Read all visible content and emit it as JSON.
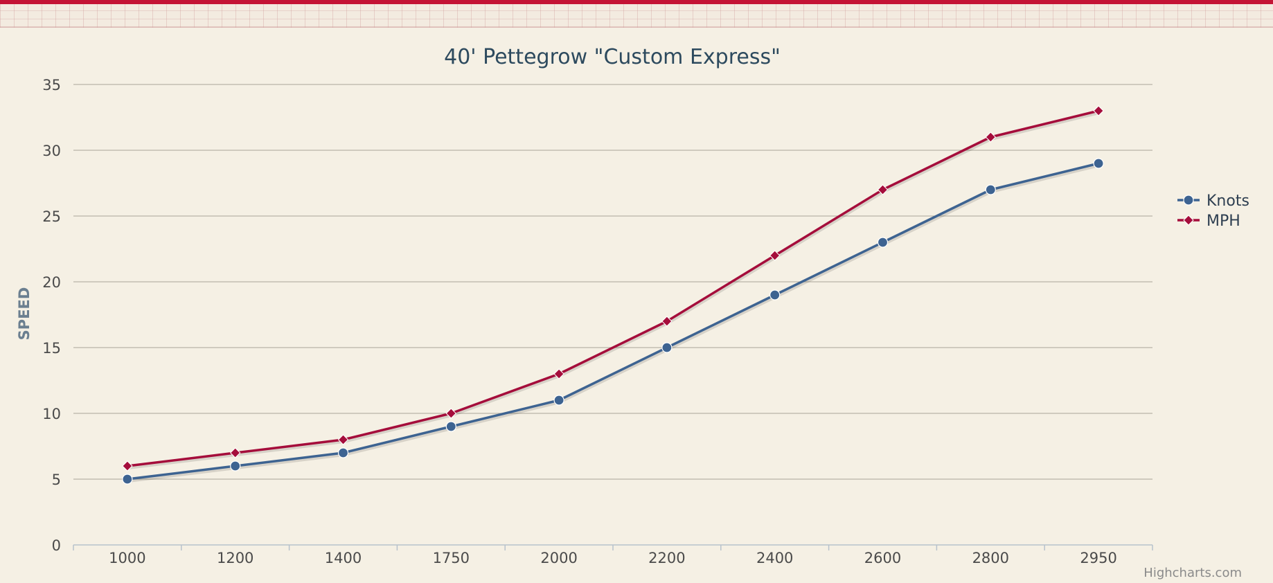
{
  "chart_data": {
    "type": "line",
    "title": "40' Pettegrow \"Custom Express\"",
    "xlabel": "",
    "ylabel": "SPEED",
    "categories": [
      "1000",
      "1200",
      "1400",
      "1750",
      "2000",
      "2200",
      "2400",
      "2600",
      "2800",
      "2950"
    ],
    "ylim": [
      0,
      35
    ],
    "yticks": [
      0,
      5,
      10,
      15,
      20,
      25,
      30,
      35
    ],
    "grid": true,
    "legend_position": "right",
    "series": [
      {
        "name": "Knots",
        "color": "#3d6391",
        "marker": "circle",
        "values": [
          5,
          6,
          7,
          9,
          11,
          15,
          19,
          23,
          27,
          29
        ]
      },
      {
        "name": "MPH",
        "color": "#a50d3b",
        "marker": "diamond",
        "values": [
          6,
          7,
          8,
          10,
          13,
          17,
          22,
          27,
          31,
          33
        ]
      }
    ]
  },
  "credits": "Highcharts.com"
}
